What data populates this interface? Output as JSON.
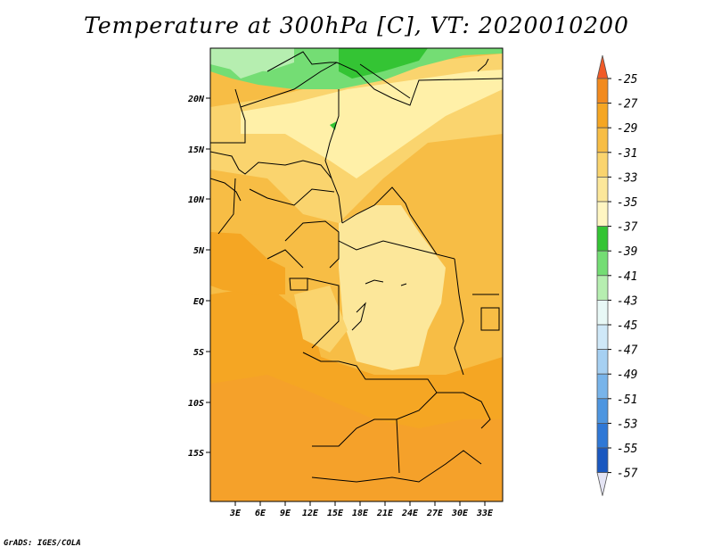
{
  "title": "Temperature at 300hPa [C], VT: 2020010200",
  "credit": "GrADS: IGES/COLA",
  "map": {
    "lat_labels": [
      "20N",
      "15N",
      "10N",
      "5N",
      "EQ",
      "5S",
      "10S",
      "15S"
    ],
    "lon_labels": [
      "3E",
      "6E",
      "9E",
      "12E",
      "15E",
      "18E",
      "21E",
      "24E",
      "27E",
      "30E",
      "33E"
    ]
  },
  "colorbar": {
    "labels": [
      "-25",
      "-27",
      "-29",
      "-31",
      "-33",
      "-35",
      "-37",
      "-39",
      "-41",
      "-43",
      "-45",
      "-47",
      "-49",
      "-51",
      "-53",
      "-55",
      "-57"
    ],
    "colors": {
      "top_arrow": "#f05a28",
      "bins": [
        "#f28a1e",
        "#f5a623",
        "#f7bd45",
        "#fad46e",
        "#fce79a",
        "#fff6c2",
        "#34c434",
        "#74dd74",
        "#b6eeb0",
        "#e8f8f6",
        "#cfe8f8",
        "#a6d0f2",
        "#78b4ea",
        "#4e96e0",
        "#2f78d6",
        "#1a58c0",
        "#0e3aa0"
      ],
      "bottom_arrow": "#0a1a70",
      "below_arrow": "#e4e4f4"
    }
  }
}
